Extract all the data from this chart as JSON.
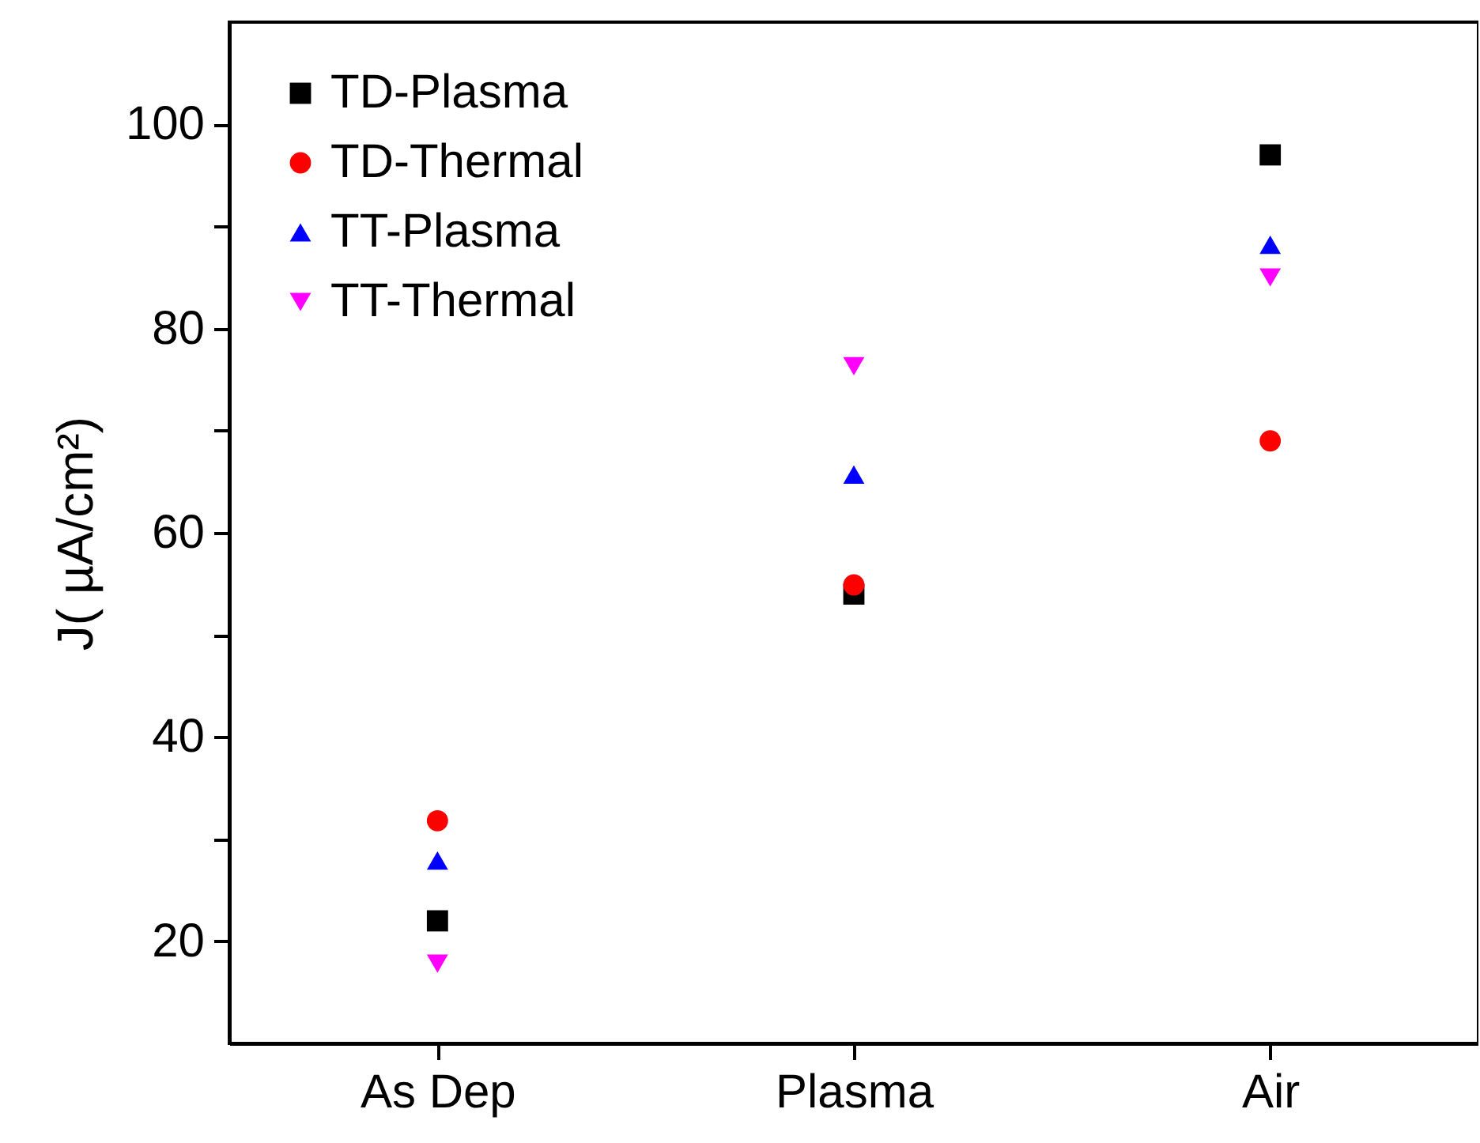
{
  "chart_data": {
    "type": "scatter",
    "ylabel": "J( µA/cm²)",
    "categories": [
      "As Dep",
      "Plasma",
      "Air"
    ],
    "series": [
      {
        "name": "TD-Plasma",
        "color": "#000000",
        "marker": "square",
        "values": [
          22.0,
          54.0,
          97.0
        ]
      },
      {
        "name": "TD-Thermal",
        "color": "#ff0000",
        "marker": "circle",
        "values": [
          31.8,
          54.9,
          69.0
        ]
      },
      {
        "name": "TT-Plasma",
        "color": "#0000ff",
        "marker": "triangle",
        "values": [
          27.9,
          65.7,
          88.2
        ]
      },
      {
        "name": "TT-Thermal",
        "color": "#ff00ff",
        "marker": "triangle-down",
        "values": [
          17.8,
          76.3,
          85.0
        ]
      }
    ],
    "ylim": [
      10,
      110
    ],
    "yticks": [
      20,
      {
        "value": 30,
        "label": null
      },
      40,
      {
        "value": 50,
        "label": null
      },
      60,
      {
        "value": 70,
        "label": null
      },
      80,
      {
        "value": 90,
        "label": null
      },
      100
    ],
    "grid": false,
    "legend": "top left"
  }
}
